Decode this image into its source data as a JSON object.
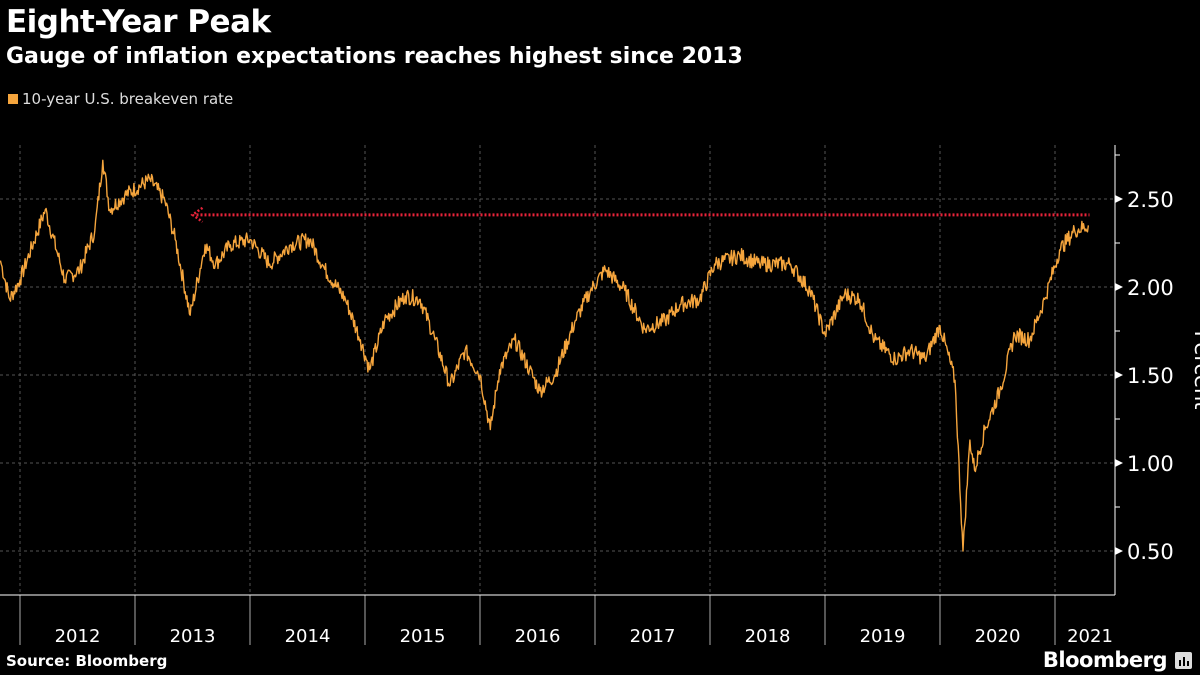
{
  "title": "Eight-Year Peak",
  "subtitle": "Gauge of inflation expectations reaches highest since 2013",
  "source": "Source: Bloomberg",
  "logo": "Bloomberg",
  "chart_data": {
    "type": "line",
    "title": "Eight-Year Peak",
    "subtitle": "Gauge of inflation expectations reaches highest since 2013",
    "xlabel": "",
    "ylabel": "Percent",
    "ylim": [
      0.25,
      2.8
    ],
    "xlim": [
      2011.83,
      2021.55
    ],
    "grid": true,
    "legend_placement": "top-left",
    "yticks": [
      0.5,
      1.0,
      1.5,
      2.0,
      2.5
    ],
    "ytick_labels": [
      "0.50",
      "1.00",
      "1.50",
      "2.00",
      "2.50"
    ],
    "xticks": [
      "2012",
      "2013",
      "2014",
      "2015",
      "2016",
      "2017",
      "2018",
      "2019",
      "2020",
      "2021"
    ],
    "series_color": "#f5a53d",
    "reference_line": {
      "value": 2.41,
      "from": 2013.5,
      "to": 2021.3,
      "color": "#e8233a",
      "arrow": "left"
    },
    "series": [
      {
        "name": "10-year U.S. breakeven rate",
        "points": [
          [
            2011.83,
            2.15
          ],
          [
            2011.91,
            1.93
          ],
          [
            2012.0,
            2.04
          ],
          [
            2012.22,
            2.44
          ],
          [
            2012.39,
            2.04
          ],
          [
            2012.52,
            2.1
          ],
          [
            2012.65,
            2.32
          ],
          [
            2012.72,
            2.72
          ],
          [
            2012.78,
            2.44
          ],
          [
            2012.91,
            2.52
          ],
          [
            2013.13,
            2.61
          ],
          [
            2013.26,
            2.49
          ],
          [
            2013.35,
            2.27
          ],
          [
            2013.48,
            1.84
          ],
          [
            2013.61,
            2.24
          ],
          [
            2013.7,
            2.13
          ],
          [
            2013.83,
            2.24
          ],
          [
            2014.0,
            2.27
          ],
          [
            2014.17,
            2.13
          ],
          [
            2014.35,
            2.24
          ],
          [
            2014.52,
            2.27
          ],
          [
            2014.65,
            2.1
          ],
          [
            2014.83,
            1.93
          ],
          [
            2014.96,
            1.7
          ],
          [
            2015.04,
            1.53
          ],
          [
            2015.17,
            1.81
          ],
          [
            2015.35,
            1.95
          ],
          [
            2015.48,
            1.93
          ],
          [
            2015.61,
            1.7
          ],
          [
            2015.74,
            1.44
          ],
          [
            2015.87,
            1.64
          ],
          [
            2016.0,
            1.5
          ],
          [
            2016.09,
            1.19
          ],
          [
            2016.17,
            1.53
          ],
          [
            2016.3,
            1.7
          ],
          [
            2016.43,
            1.53
          ],
          [
            2016.52,
            1.41
          ],
          [
            2016.65,
            1.5
          ],
          [
            2016.83,
            1.81
          ],
          [
            2016.96,
            1.98
          ],
          [
            2017.09,
            2.1
          ],
          [
            2017.26,
            1.98
          ],
          [
            2017.43,
            1.76
          ],
          [
            2017.61,
            1.81
          ],
          [
            2017.74,
            1.9
          ],
          [
            2017.91,
            1.93
          ],
          [
            2018.04,
            2.13
          ],
          [
            2018.26,
            2.18
          ],
          [
            2018.43,
            2.13
          ],
          [
            2018.7,
            2.13
          ],
          [
            2018.87,
            1.98
          ],
          [
            2019.0,
            1.73
          ],
          [
            2019.17,
            1.96
          ],
          [
            2019.3,
            1.93
          ],
          [
            2019.43,
            1.7
          ],
          [
            2019.61,
            1.59
          ],
          [
            2019.74,
            1.64
          ],
          [
            2019.87,
            1.59
          ],
          [
            2020.0,
            1.78
          ],
          [
            2020.13,
            1.47
          ],
          [
            2020.2,
            0.5
          ],
          [
            2020.26,
            1.13
          ],
          [
            2020.3,
            0.96
          ],
          [
            2020.39,
            1.19
          ],
          [
            2020.52,
            1.41
          ],
          [
            2020.65,
            1.73
          ],
          [
            2020.78,
            1.7
          ],
          [
            2020.91,
            1.93
          ],
          [
            2021.04,
            2.21
          ],
          [
            2021.17,
            2.32
          ],
          [
            2021.29,
            2.35
          ]
        ]
      }
    ]
  }
}
